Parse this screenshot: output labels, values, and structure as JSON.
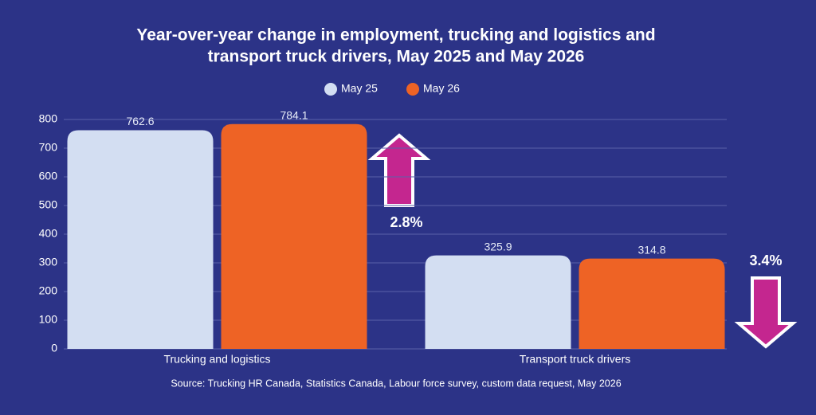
{
  "chart_data": {
    "type": "bar",
    "title_lines": [
      "Year-over-year change in employment, trucking and logistics and",
      "transport truck drivers, May 2025 and May 2026"
    ],
    "categories": [
      "Trucking and logistics",
      "Transport truck drivers"
    ],
    "series": [
      {
        "name": "May 25",
        "color": "#d3def2",
        "values": [
          762.6,
          325.9
        ]
      },
      {
        "name": "May 26",
        "color": "#ee6325",
        "values": [
          784.1,
          314.8
        ]
      }
    ],
    "ylim": [
      0,
      800
    ],
    "yticks": [
      0,
      100,
      200,
      300,
      400,
      500,
      600,
      700,
      800
    ],
    "grid": true,
    "annotations": [
      "2.8%",
      "3.4%"
    ],
    "source": "Source: Trucking HR Canada, Statistics Canada, Labour force survey, custom data request, May 2026"
  }
}
